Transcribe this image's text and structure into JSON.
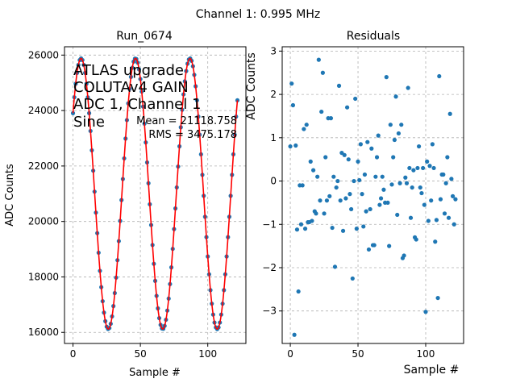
{
  "figure": {
    "suptitle": "Channel 1: 0.995 MHz"
  },
  "chart_data": [
    {
      "type": "line",
      "title": "Run_0674",
      "xlabel": "Sample #",
      "ylabel": "ADC Counts",
      "xlim": [
        -6.3,
        128.3
      ],
      "ylim": [
        15600,
        26300
      ],
      "xticks": [
        0,
        50,
        100
      ],
      "yticks": [
        16000,
        18000,
        20000,
        22000,
        24000,
        26000
      ],
      "xtick_labels": [
        "0",
        "50",
        "100"
      ],
      "ytick_labels": [
        "16000",
        "18000",
        "20000",
        "22000",
        "24000",
        "26000"
      ],
      "grid": true,
      "annotation_lines": [
        "ATLAS upgrade",
        "COLUTAv4 GAIN",
        "ADC 1, Channel 1",
        "Sine"
      ],
      "stats_lines": [
        "Mean = 21118.758",
        "RMS = 3475.178"
      ],
      "fit_model": {
        "offset": 21000,
        "amplitude": 4880,
        "period_samples": 40.4,
        "peak_sample": 6
      },
      "series": [
        {
          "kind": "scatter",
          "color": "#1f77b4",
          "x": [
            0,
            122
          ],
          "n_points": 123
        },
        {
          "kind": "line",
          "color": "#ff0000"
        }
      ]
    },
    {
      "type": "scatter",
      "title": "Residuals",
      "xlabel": "Sample #",
      "ylabel": "ADC Counts",
      "xlim": [
        -6,
        128
      ],
      "ylim": [
        -3.75,
        3.1
      ],
      "xticks": [
        0,
        50,
        100
      ],
      "yticks": [
        -3,
        -2,
        -1,
        0,
        1,
        2,
        3
      ],
      "xtick_labels": [
        "0",
        "50",
        "100"
      ],
      "ytick_labels": [
        "−3",
        "−2",
        "−1",
        "0",
        "1",
        "2",
        "3"
      ],
      "grid": true,
      "color": "#1f77b4",
      "x": [
        0,
        1,
        2,
        3,
        4,
        5,
        6,
        7,
        8,
        9,
        10,
        11,
        12,
        13,
        14,
        15,
        16,
        17,
        18,
        19,
        20,
        21,
        22,
        23,
        24,
        25,
        26,
        27,
        28,
        29,
        30,
        31,
        32,
        33,
        34,
        35,
        36,
        37,
        38,
        39,
        40,
        41,
        42,
        43,
        44,
        45,
        46,
        47,
        48,
        49,
        50,
        51,
        52,
        53,
        54,
        55,
        56,
        57,
        58,
        59,
        60,
        61,
        62,
        63,
        64,
        65,
        66,
        67,
        68,
        69,
        70,
        71,
        72,
        73,
        74,
        75,
        76,
        77,
        78,
        79,
        80,
        81,
        82,
        83,
        84,
        85,
        86,
        87,
        88,
        89,
        90,
        91,
        92,
        93,
        94,
        95,
        96,
        97,
        98,
        99,
        100,
        101,
        102,
        103,
        104,
        105,
        106,
        107,
        108,
        109,
        110,
        111,
        112,
        113,
        114,
        115,
        116,
        117,
        118,
        119,
        120,
        121,
        122
      ],
      "y": [
        0.8,
        2.25,
        1.75,
        -3.55,
        0.82,
        -1.12,
        -2.55,
        -0.1,
        -1.0,
        -0.1,
        1.2,
        -1.1,
        1.3,
        -0.95,
        -0.95,
        0.45,
        -0.92,
        0.25,
        -0.7,
        -0.75,
        0.1,
        2.8,
        -0.45,
        1.6,
        2.5,
        -0.75,
        0.55,
        -0.45,
        1.45,
        -0.35,
        1.45,
        -1.08,
        0.1,
        -1.98,
        -0.15,
        0.0,
        2.2,
        -0.45,
        0.65,
        -1.15,
        0.6,
        -0.4,
        1.7,
        0.5,
        -0.3,
        -0.65,
        -2.25,
        0.0,
        1.9,
        -1.1,
        0.45,
        0.02,
        0.85,
        -0.3,
        -1.05,
        0.15,
        -0.7,
        0.9,
        -1.58,
        -0.65,
        0.75,
        -1.48,
        -1.48,
        0.1,
        0.55,
        1.05,
        -0.55,
        -0.4,
        0.1,
        -0.2,
        -0.5,
        2.4,
        -0.5,
        -1.5,
        1.3,
        -0.08,
        0.55,
        0.95,
        1.95,
        -0.78,
        1.1,
        -0.05,
        1.3,
        -1.78,
        -1.72,
        0.08,
        -0.05,
        2.15,
        0.3,
        -0.85,
        -0.15,
        0.25,
        -1.3,
        -1.35,
        0.3,
        0.8,
        -0.15,
        -0.28,
        0.3,
        -0.55,
        -3.02,
        0.45,
        -0.92,
        0.35,
        -0.45,
        0.85,
        0.3,
        -1.4,
        -0.9,
        -2.7,
        2.42,
        -0.42,
        0.15,
        0.15,
        -0.75,
        -0.05,
        0.55,
        -0.85,
        1.55,
        0.05,
        -0.35,
        -1.0,
        -0.42
      ]
    }
  ]
}
